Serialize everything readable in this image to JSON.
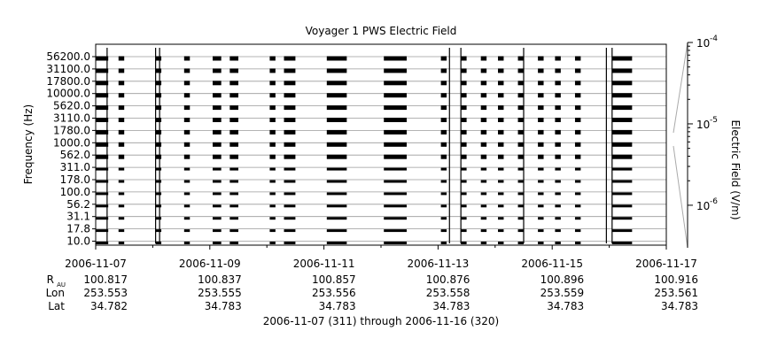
{
  "chart_data": {
    "type": "line",
    "title": "Voyager 1 PWS Electric Field",
    "ylabel": "Frequency (Hz)",
    "colorbar_label": "Electric Field (V/m)",
    "colorbar_ticks": [
      {
        "base": "10",
        "exp": "-4",
        "value": 0.0001
      },
      {
        "base": "10",
        "exp": "-5",
        "value": 1e-05
      },
      {
        "base": "10",
        "exp": "-6",
        "value": 1e-06
      }
    ],
    "colorbar_range": [
      3e-07,
      0.0001
    ],
    "y_tick_labels": [
      "56200.0",
      "31100.0",
      "17800.0",
      "10000.0",
      "5620.0",
      "3110.0",
      "1780.0",
      "1000.0",
      "562.0",
      "311.0",
      "178.0",
      "100.0",
      "56.2",
      "31.1",
      "17.8",
      "10.0"
    ],
    "x_range_days": [
      0,
      10
    ],
    "x_ticks": [
      {
        "label": "2006-11-07",
        "day": 0
      },
      {
        "label": "2006-11-09",
        "day": 2
      },
      {
        "label": "2006-11-11",
        "day": 4
      },
      {
        "label": "2006-11-13",
        "day": 6
      },
      {
        "label": "2006-11-15",
        "day": 8
      },
      {
        "label": "2006-11-17",
        "day": 10
      }
    ],
    "ephemeris_rows": [
      {
        "label": "R",
        "sub": "AU",
        "values": [
          "100.817",
          "100.837",
          "100.857",
          "100.876",
          "100.896",
          "100.916"
        ]
      },
      {
        "label": "Lon",
        "sub": "",
        "values": [
          "253.553",
          "253.555",
          "253.556",
          "253.558",
          "253.559",
          "253.561"
        ]
      },
      {
        "label": "Lat",
        "sub": "",
        "values": [
          "34.782",
          "34.783",
          "34.783",
          "34.783",
          "34.783",
          "34.783"
        ]
      }
    ],
    "date_range_text": "2006-11-07 (311) through 2006-11-16 (320)",
    "observation_blocks_days": [
      [
        0.0,
        0.22
      ],
      [
        0.4,
        0.5
      ],
      [
        1.05,
        1.15
      ],
      [
        1.55,
        1.65
      ],
      [
        2.05,
        2.2
      ],
      [
        2.35,
        2.5
      ],
      [
        3.05,
        3.15
      ],
      [
        3.3,
        3.5
      ],
      [
        4.05,
        4.4
      ],
      [
        5.05,
        5.45
      ],
      [
        6.05,
        6.15
      ],
      [
        6.4,
        6.5
      ],
      [
        6.75,
        6.85
      ],
      [
        7.05,
        7.15
      ],
      [
        7.4,
        7.5
      ],
      [
        7.75,
        7.85
      ],
      [
        8.05,
        8.15
      ],
      [
        8.4,
        8.5
      ],
      [
        9.05,
        9.4
      ]
    ],
    "spike_days": [
      0.2,
      1.05,
      1.12,
      6.2,
      6.4,
      7.5,
      8.95,
      9.05
    ]
  }
}
